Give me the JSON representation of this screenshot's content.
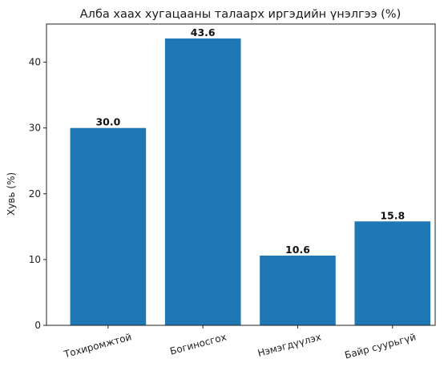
{
  "chart_data": {
    "type": "bar",
    "title": "Алба хаах хугацааны талаарх иргэдийн үнэлгээ (%)",
    "xlabel": "",
    "ylabel": "Хувь (%)",
    "categories": [
      "Тохиромжтой",
      "Богиносгох",
      "Нэмэгдүүлэх",
      "Байр суурьгүй"
    ],
    "values": [
      30.0,
      43.6,
      10.6,
      15.8
    ],
    "value_labels": [
      "30.0",
      "43.6",
      "10.6",
      "15.8"
    ],
    "ylim": [
      0,
      45.8
    ],
    "yticks": [
      0,
      10,
      20,
      30,
      40
    ],
    "ytick_labels": [
      "0",
      "10",
      "20",
      "30",
      "40"
    ],
    "grid": false,
    "bar_color": "#1f77b4"
  }
}
